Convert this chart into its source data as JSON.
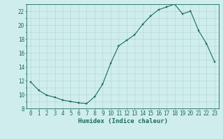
{
  "x": [
    0,
    1,
    2,
    3,
    4,
    5,
    6,
    7,
    8,
    9,
    10,
    11,
    12,
    13,
    14,
    15,
    16,
    17,
    18,
    19,
    20,
    21,
    22,
    23
  ],
  "y": [
    11.8,
    10.6,
    9.9,
    9.6,
    9.2,
    9.0,
    8.8,
    8.7,
    9.7,
    11.5,
    14.5,
    17.0,
    17.8,
    18.6,
    20.1,
    21.3,
    22.2,
    22.6,
    23.0,
    21.6,
    22.0,
    19.2,
    17.3,
    14.7
  ],
  "line_color": "#1a6b5a",
  "marker_color": "#1a6b5a",
  "bg_color": "#d0eded",
  "grid_color": "#aed4d4",
  "xlabel": "Humidex (Indice chaleur)",
  "ylim": [
    8,
    23
  ],
  "xlim": [
    -0.5,
    23.5
  ],
  "yticks": [
    8,
    10,
    12,
    14,
    16,
    18,
    20,
    22
  ],
  "xticks": [
    0,
    1,
    2,
    3,
    4,
    5,
    6,
    7,
    8,
    9,
    10,
    11,
    12,
    13,
    14,
    15,
    16,
    17,
    18,
    19,
    20,
    21,
    22,
    23
  ],
  "label_fontsize": 6.5,
  "tick_fontsize": 5.5
}
